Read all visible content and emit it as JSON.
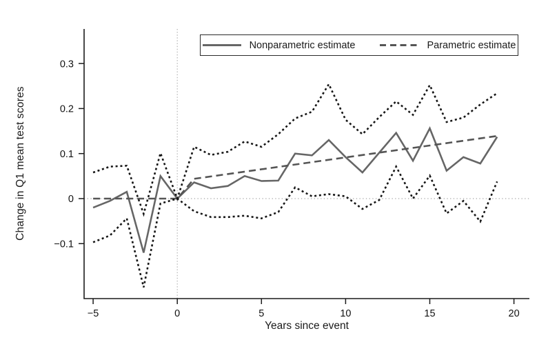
{
  "chart_data": {
    "type": "line",
    "title": "",
    "xlabel": "Years since event",
    "ylabel": "Change in Q1 mean test scores",
    "xlim": [
      -5.5,
      20.9
    ],
    "ylim": [
      -0.222,
      0.377
    ],
    "grid": false,
    "legend_position": "top-inside",
    "reference_lines": {
      "horizontal_at_y": 0,
      "vertical_at_x": 0
    },
    "x_ticks": [
      [
        -5,
        "−5"
      ],
      [
        0,
        "0"
      ],
      [
        5,
        "5"
      ],
      [
        10,
        "10"
      ],
      [
        15,
        "15"
      ],
      [
        20,
        "20"
      ]
    ],
    "y_ticks": [
      [
        -0.1,
        "−0.1"
      ],
      [
        0,
        "0"
      ],
      [
        0.1,
        "0.1"
      ],
      [
        0.2,
        "0.2"
      ],
      [
        0.3,
        "0.3"
      ]
    ],
    "x": [
      -5,
      -4,
      -3,
      -2,
      -1,
      0,
      1,
      2,
      3,
      4,
      5,
      6,
      7,
      8,
      9,
      10,
      11,
      12,
      13,
      14,
      15,
      16,
      17,
      18,
      19
    ],
    "series": [
      {
        "id": "nonparametric-estimate-line",
        "name": "Nonparametric estimate",
        "style": "solid",
        "color": "#666666",
        "in_legend": true,
        "values": [
          -0.02,
          -0.005,
          0.015,
          -0.12,
          0.05,
          0.0,
          0.036,
          0.023,
          0.028,
          0.05,
          0.039,
          0.04,
          0.1,
          0.096,
          0.13,
          0.092,
          0.058,
          0.102,
          0.146,
          0.084,
          0.156,
          0.062,
          0.092,
          0.078,
          0.137
        ]
      },
      {
        "id": "parametric-estimate-line",
        "name": "Parametric estimate",
        "style": "dashed",
        "color": "#555555",
        "in_legend": true,
        "x": [
          -5,
          0,
          1,
          19
        ],
        "values": [
          0.0,
          0.0,
          0.044,
          0.139
        ]
      },
      {
        "id": "confidence-band-upper-line",
        "name": "Upper confidence band",
        "style": "dotted",
        "color": "#161616",
        "in_legend": false,
        "values": [
          0.058,
          0.071,
          0.073,
          -0.034,
          0.101,
          0.0,
          0.115,
          0.097,
          0.104,
          0.127,
          0.115,
          0.143,
          0.178,
          0.193,
          0.254,
          0.175,
          0.143,
          0.181,
          0.216,
          0.186,
          0.252,
          0.17,
          0.18,
          0.209,
          0.234
        ]
      },
      {
        "id": "confidence-band-lower-line",
        "name": "Lower confidence band",
        "style": "dotted",
        "color": "#161616",
        "in_legend": false,
        "values": [
          -0.097,
          -0.082,
          -0.044,
          -0.197,
          -0.011,
          0.0,
          -0.028,
          -0.041,
          -0.041,
          -0.038,
          -0.044,
          -0.03,
          0.025,
          0.005,
          0.01,
          0.005,
          -0.023,
          -0.003,
          0.071,
          0.0,
          0.051,
          -0.033,
          -0.005,
          -0.051,
          0.038
        ]
      }
    ]
  }
}
